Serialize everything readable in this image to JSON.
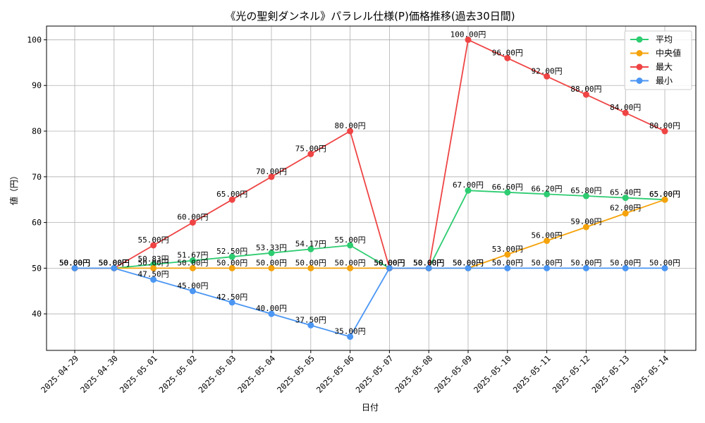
{
  "chart_data": {
    "type": "line",
    "title": "《光の聖剣ダンネル》パラレル仕様(P)価格推移(過去30日間)",
    "xlabel": "日付",
    "ylabel": "値（円）",
    "ylim": [
      32,
      103
    ],
    "yticks": [
      40,
      50,
      60,
      70,
      80,
      90,
      100
    ],
    "grid": true,
    "legend_position": "top-right",
    "value_suffix": "円",
    "categories": [
      "2025-04-29",
      "2025-04-30",
      "2025-05-01",
      "2025-05-02",
      "2025-05-03",
      "2025-05-04",
      "2025-05-05",
      "2025-05-06",
      "2025-05-07",
      "2025-05-08",
      "2025-05-09",
      "2025-05-10",
      "2025-05-11",
      "2025-05-12",
      "2025-05-13",
      "2025-05-14"
    ],
    "series": [
      {
        "name": "平均",
        "color": "#2ecc71",
        "values": [
          50.0,
          50.0,
          50.83,
          51.67,
          52.5,
          53.33,
          54.17,
          55.0,
          50.0,
          50.0,
          67.0,
          66.6,
          66.2,
          65.8,
          65.4,
          65.0
        ]
      },
      {
        "name": "中央値",
        "color": "#f5a30b",
        "values": [
          50.0,
          50.0,
          50.0,
          50.0,
          50.0,
          50.0,
          50.0,
          50.0,
          50.0,
          50.0,
          50.0,
          53.0,
          56.0,
          59.0,
          62.0,
          65.0
        ]
      },
      {
        "name": "最大",
        "color": "#ef4444",
        "values": [
          50.0,
          50.0,
          55.0,
          60.0,
          65.0,
          70.0,
          75.0,
          80.0,
          50.0,
          50.0,
          100.0,
          96.0,
          92.0,
          88.0,
          84.0,
          80.0
        ]
      },
      {
        "name": "最小",
        "color": "#4b96f3",
        "values": [
          50.0,
          50.0,
          47.5,
          45.0,
          42.5,
          40.0,
          37.5,
          35.0,
          50.0,
          50.0,
          50.0,
          50.0,
          50.0,
          50.0,
          50.0,
          50.0
        ]
      }
    ]
  }
}
